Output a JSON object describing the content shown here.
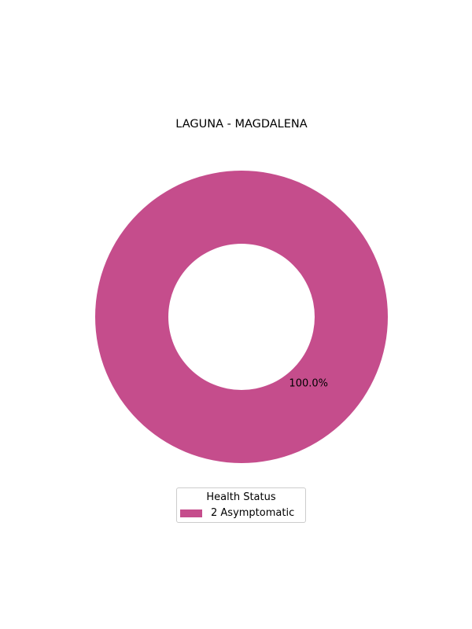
{
  "chart_data": {
    "type": "pie",
    "title": "LAGUNA - MAGDALENA",
    "donut": true,
    "categories": [
      "2  Asymptomatic"
    ],
    "values": [
      2
    ],
    "percent_labels": [
      "100.0%"
    ],
    "colors": [
      "#c54d8c"
    ],
    "legend": {
      "title": "Health Status",
      "placement": "bottom-center",
      "entries": [
        "2  Asymptomatic"
      ]
    }
  }
}
